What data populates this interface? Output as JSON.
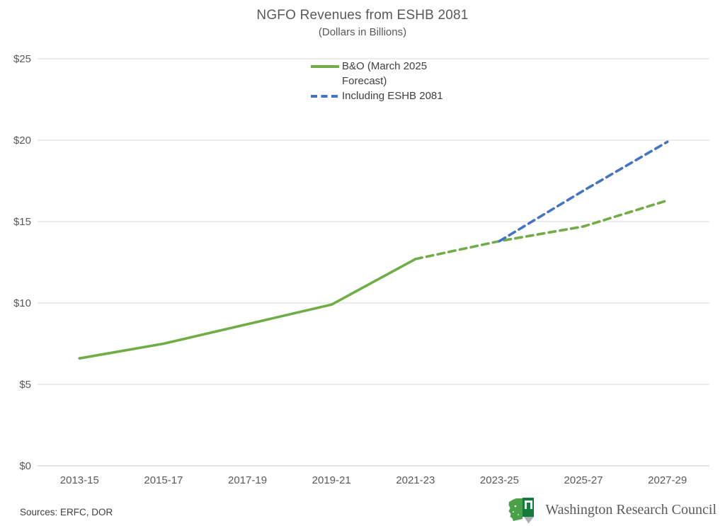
{
  "title": "NGFO Revenues from ESHB 2081",
  "subtitle": "(Dollars in Billions)",
  "legend": {
    "items": [
      {
        "label": "B&O (March 2025 Forecast)",
        "color": "#70AD47",
        "style": "solid"
      },
      {
        "label": "Including ESHB 2081",
        "color": "#4472C4",
        "style": "dashed"
      }
    ]
  },
  "footer": {
    "sources": "Sources: ERFC, DOR",
    "logo_text": "Washington Research Council"
  },
  "colors": {
    "series_green": "#70AD47",
    "series_blue": "#4472C4",
    "gridline": "#D9D9D9",
    "axis_line": "#C9C9C9",
    "text_gray": "#595959",
    "logo_green": "#4BA147",
    "logo_dark_green": "#157B3B",
    "logo_shadow_gray": "#AAB0B5"
  },
  "chart_data": {
    "type": "line",
    "categories": [
      "2013-15",
      "2015-17",
      "2017-19",
      "2019-21",
      "2021-23",
      "2023-25",
      "2025-27",
      "2027-29"
    ],
    "series": [
      {
        "name": "B&O (March 2025 Forecast)",
        "color": "#70AD47",
        "style": "solid-then-dashed",
        "dash_from_index": 4,
        "values": [
          6.6,
          7.5,
          8.7,
          9.9,
          12.7,
          13.8,
          14.7,
          16.3
        ]
      },
      {
        "name": "Including ESHB 2081",
        "color": "#4472C4",
        "style": "dashed",
        "values": [
          null,
          null,
          null,
          null,
          null,
          13.8,
          16.9,
          19.9
        ]
      }
    ],
    "ylabel_ticks": [
      "$0",
      "$5",
      "$10",
      "$15",
      "$20",
      "$25"
    ],
    "ylim": [
      0,
      25
    ],
    "ytick_step": 5,
    "grid": true,
    "legend_position": "top-center"
  }
}
